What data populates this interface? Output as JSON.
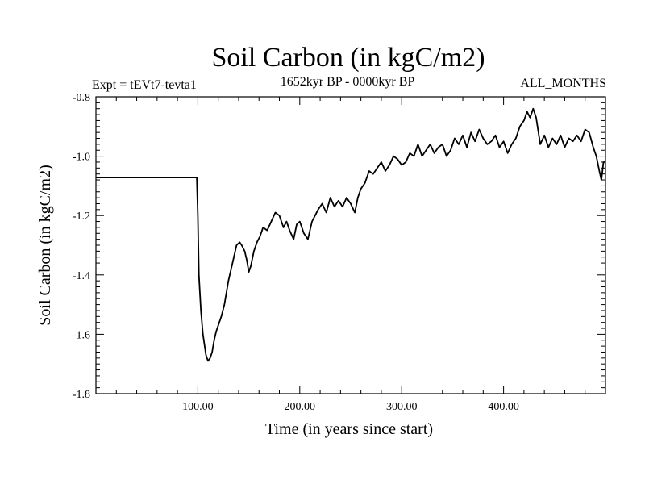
{
  "chart_data": {
    "type": "line",
    "title": "Soil Carbon (in kgC/m2)",
    "subtitle_left": "Expt = tEVt7-tevta1",
    "subtitle_center": "1652kyr BP - 0000kyr BP",
    "subtitle_right": "ALL_MONTHS",
    "xlabel": "Time (in years since start)",
    "ylabel": "Soil Carbon (in kgC/m2)",
    "xlim": [
      0,
      500
    ],
    "ylim": [
      -1.8,
      -0.8
    ],
    "x_ticks": [
      100,
      200,
      300,
      400
    ],
    "x_tick_labels": [
      "100.00",
      "200.00",
      "300.00",
      "400.00"
    ],
    "y_ticks": [
      -1.8,
      -1.6,
      -1.4,
      -1.2,
      -1.0,
      -0.8
    ],
    "y_tick_labels": [
      "-1.8",
      "-1.6",
      "-1.4",
      "-1.2",
      "-1.0",
      "-0.8"
    ],
    "grid": false,
    "line_color": "#000000",
    "series": [
      {
        "name": "Soil Carbon",
        "x": [
          0,
          99,
          100,
          101,
          103,
          105,
          108,
          110,
          112,
          114,
          116,
          118,
          120,
          123,
          126,
          130,
          134,
          138,
          141,
          143,
          146,
          148,
          150,
          152,
          155,
          158,
          161,
          164,
          168,
          172,
          176,
          180,
          184,
          187,
          190,
          194,
          197,
          200,
          204,
          208,
          212,
          215,
          218,
          222,
          226,
          230,
          234,
          238,
          242,
          246,
          250,
          254,
          257,
          260,
          264,
          268,
          272,
          276,
          280,
          284,
          288,
          292,
          296,
          300,
          304,
          308,
          312,
          316,
          320,
          324,
          328,
          332,
          336,
          340,
          344,
          348,
          352,
          356,
          360,
          364,
          368,
          372,
          376,
          380,
          384,
          388,
          392,
          396,
          400,
          404,
          408,
          412,
          416,
          420,
          423,
          426,
          429,
          432,
          436,
          440,
          444,
          448,
          452,
          456,
          460,
          464,
          468,
          472,
          476,
          480,
          484,
          488,
          491,
          494,
          496,
          498,
          500
        ],
        "y": [
          -1.072,
          -1.072,
          -1.2,
          -1.4,
          -1.52,
          -1.6,
          -1.67,
          -1.69,
          -1.68,
          -1.66,
          -1.62,
          -1.59,
          -1.57,
          -1.54,
          -1.5,
          -1.42,
          -1.36,
          -1.3,
          -1.29,
          -1.3,
          -1.32,
          -1.35,
          -1.39,
          -1.37,
          -1.32,
          -1.29,
          -1.27,
          -1.24,
          -1.25,
          -1.22,
          -1.19,
          -1.2,
          -1.24,
          -1.22,
          -1.25,
          -1.28,
          -1.23,
          -1.22,
          -1.26,
          -1.28,
          -1.22,
          -1.2,
          -1.18,
          -1.16,
          -1.19,
          -1.14,
          -1.17,
          -1.15,
          -1.17,
          -1.14,
          -1.16,
          -1.19,
          -1.14,
          -1.11,
          -1.09,
          -1.05,
          -1.06,
          -1.04,
          -1.02,
          -1.05,
          -1.03,
          -1.0,
          -1.01,
          -1.03,
          -1.02,
          -0.99,
          -1.0,
          -0.96,
          -1.0,
          -0.98,
          -0.96,
          -0.99,
          -0.97,
          -0.96,
          -1.0,
          -0.98,
          -0.94,
          -0.96,
          -0.93,
          -0.97,
          -0.92,
          -0.95,
          -0.91,
          -0.94,
          -0.96,
          -0.95,
          -0.93,
          -0.97,
          -0.95,
          -0.99,
          -0.96,
          -0.94,
          -0.9,
          -0.88,
          -0.85,
          -0.87,
          -0.84,
          -0.87,
          -0.96,
          -0.93,
          -0.97,
          -0.94,
          -0.96,
          -0.93,
          -0.97,
          -0.94,
          -0.95,
          -0.93,
          -0.95,
          -0.91,
          -0.92,
          -0.97,
          -1.0,
          -1.05,
          -1.08,
          -1.02,
          -1.02
        ]
      }
    ]
  }
}
